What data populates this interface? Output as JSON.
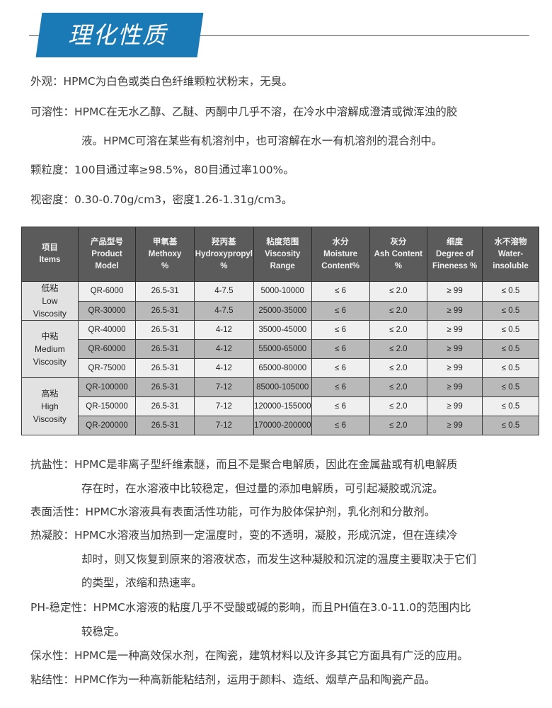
{
  "title": "理化性质",
  "colors": {
    "banner": "#1a7ab5",
    "table_header": "#5b5b5b"
  },
  "intro": [
    {
      "lines": [
        "外观：HPMC为白色或类白色纤维颗粒状粉末，无臭。"
      ]
    },
    {
      "lines": [
        "可溶性：HPMC在无水乙醇、乙醚、丙酮中几乎不溶，在冷水中溶解成澄清或微浑浊的胶",
        "液。HPMC可溶在某些有机溶剂中，也可溶解在水一有机溶剂的混合剂中。"
      ]
    },
    {
      "lines": [
        "颗粒度：100目通过率≥98.5%，80目通过率100%。"
      ]
    },
    {
      "lines": [
        "视密度：0.30-0.70g/cm3，密度1.26-1.31g/cm3。"
      ]
    }
  ],
  "table": {
    "headers": [
      [
        "项目",
        "Items"
      ],
      [
        "产品型号",
        "Product",
        "Model"
      ],
      [
        "甲氧基",
        "Methoxy",
        "%"
      ],
      [
        "羟丙基",
        "Hydroxypropyl",
        "%"
      ],
      [
        "粘度范围",
        "Viscosity",
        "Range"
      ],
      [
        "水分",
        "Moisture",
        "Content%"
      ],
      [
        "灰分",
        "Ash Content",
        "%"
      ],
      [
        "细度",
        "Degree of",
        "Fineness %"
      ],
      [
        "水不溶物",
        "Water-",
        "insoluble"
      ]
    ],
    "groups": [
      {
        "label": [
          "低粘",
          "Low",
          "Viscosity"
        ],
        "rows": [
          [
            "QR-6000",
            "26.5-31",
            "4-7.5",
            "5000-10000",
            "≤ 6",
            "≤ 2.0",
            "≥ 99",
            "≤ 0.5"
          ],
          [
            "QR-30000",
            "26.5-31",
            "4-7.5",
            "25000-35000",
            "≤ 6",
            "≤ 2.0",
            "≥ 99",
            "≤ 0.5"
          ]
        ]
      },
      {
        "label": [
          "中粘",
          "Medium",
          "Viscosity"
        ],
        "rows": [
          [
            "QR-40000",
            "26.5-31",
            "4-12",
            "35000-45000",
            "≤ 6",
            "≤ 2.0",
            "≥ 99",
            "≤ 0.5"
          ],
          [
            "QR-60000",
            "26.5-31",
            "4-12",
            "55000-65000",
            "≤ 6",
            "≤ 2.0",
            "≥ 99",
            "≤ 0.5"
          ],
          [
            "QR-75000",
            "26.5-31",
            "4-12",
            "65000-80000",
            "≤ 6",
            "≤ 2.0",
            "≥ 99",
            "≤ 0.5"
          ]
        ]
      },
      {
        "label": [
          "高粘",
          "High",
          "Viscosity"
        ],
        "rows": [
          [
            "QR-100000",
            "26.5-31",
            "7-12",
            "85000-105000",
            "≤ 6",
            "≤ 2.0",
            "≥ 99",
            "≤ 0.5"
          ],
          [
            "QR-150000",
            "26.5-31",
            "7-12",
            "120000-155000",
            "≤ 6",
            "≤ 2.0",
            "≥ 99",
            "≤ 0.5"
          ],
          [
            "QR-200000",
            "26.5-31",
            "7-12",
            "170000-200000",
            "≤ 6",
            "≤ 2.0",
            "≥ 99",
            "≤ 0.5"
          ]
        ]
      }
    ]
  },
  "properties": [
    {
      "lines": [
        "抗盐性：HPMC是非离子型纤维素醚，而且不是聚合电解质，因此在金属盐或有机电解质",
        "存在时，在水溶液中比较稳定，但过量的添加电解质，可引起凝胶或沉淀。"
      ]
    },
    {
      "lines": [
        "表面活性：HPMC水溶液具有表面活性功能，可作为胶体保护剂，乳化剂和分散剂。"
      ]
    },
    {
      "lines": [
        "热凝胶：HPMC水溶液当加热到一定温度时，变的不透明，凝胶，形成沉淀，但在连续冷",
        "却时，则又恢复到原来的溶液状态，而发生这种凝胶和沉淀的温度主要取决于它们",
        "的类型，浓缩和热速率。"
      ]
    },
    {
      "lines": [
        "PH-稳定性：HPMC水溶液的粘度几乎不受酸或碱的影响，而且PH值在3.0-11.0的范围内比",
        "较稳定。"
      ]
    },
    {
      "lines": [
        "保水性：HPMC是一种高效保水剂，在陶瓷，建筑材料以及许多其它方面具有广泛的应用。"
      ]
    },
    {
      "lines": [
        "粘结性：HPMC作为一种高新能粘结剂，运用于颜料、造纸、烟草产品和陶瓷产品。"
      ]
    }
  ]
}
